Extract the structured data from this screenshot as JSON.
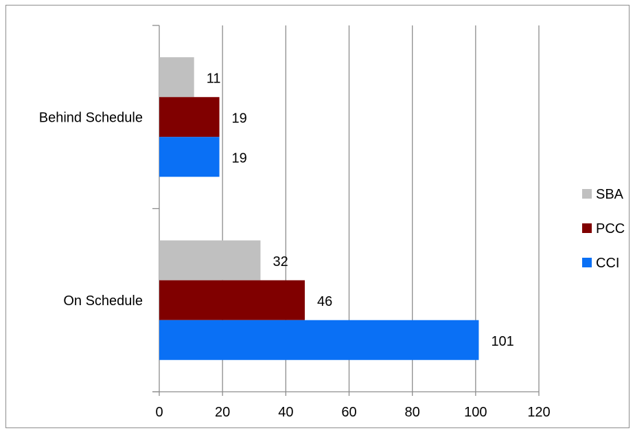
{
  "chart_data": {
    "type": "bar",
    "orientation": "horizontal",
    "categories": [
      "Behind Schedule",
      "On Schedule"
    ],
    "series": [
      {
        "name": "SBA",
        "color": "#c0c0c0",
        "values": [
          11,
          32
        ]
      },
      {
        "name": "PCC",
        "color": "#800000",
        "values": [
          19,
          46
        ]
      },
      {
        "name": "CCI",
        "color": "#0a70f5",
        "values": [
          19,
          101
        ]
      }
    ],
    "xlim": [
      0,
      120
    ],
    "xticks": [
      0,
      20,
      40,
      60,
      80,
      100,
      120
    ],
    "grid": "vertical",
    "data_labels": true,
    "legend_position": "right"
  }
}
